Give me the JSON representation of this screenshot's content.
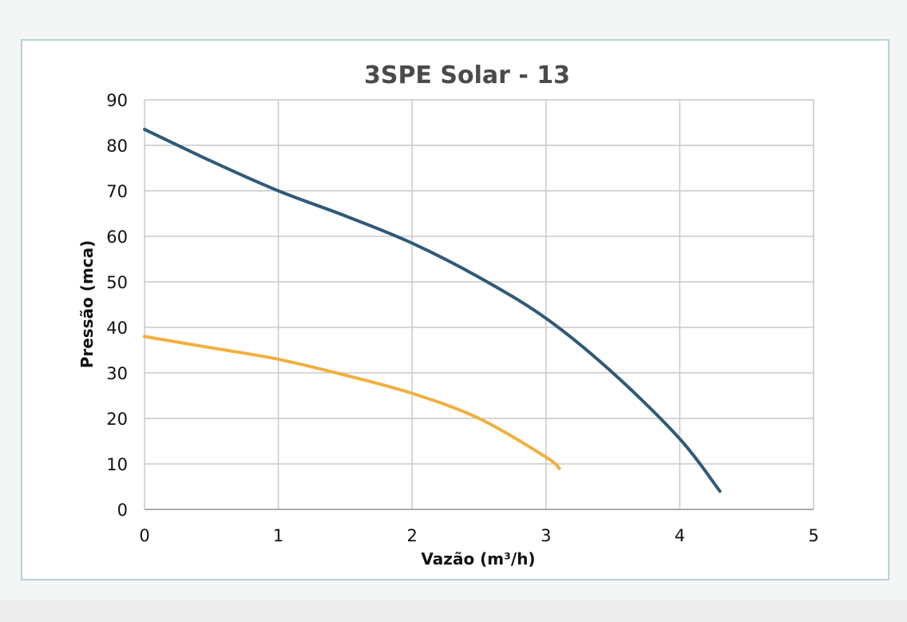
{
  "chart_data": {
    "type": "line",
    "title": "3SPE Solar - 13",
    "xlabel": "Vazão (m³/h)",
    "ylabel": "Pressão (mca)",
    "xlim": [
      0,
      5
    ],
    "ylim": [
      0,
      90
    ],
    "x_ticks": [
      "0",
      "1",
      "2",
      "3",
      "4",
      "5"
    ],
    "y_ticks": [
      "0",
      "10",
      "20",
      "30",
      "40",
      "50",
      "60",
      "70",
      "80",
      "90"
    ],
    "grid": true,
    "legend": "none",
    "series": [
      {
        "name": "blue curve",
        "color": "#2f5a78",
        "x": [
          0,
          0.5,
          1,
          1.5,
          2,
          2.5,
          3,
          3.5,
          4,
          4.3
        ],
        "y": [
          83.5,
          76.5,
          70,
          64.5,
          58.5,
          51,
          42,
          30,
          15.5,
          4
        ]
      },
      {
        "name": "orange curve",
        "color": "#f0b040",
        "x": [
          0,
          0.5,
          1,
          1.5,
          2,
          2.5,
          3,
          3.1
        ],
        "y": [
          38,
          35.5,
          33,
          29.5,
          25.5,
          20,
          11.5,
          9
        ]
      }
    ]
  }
}
